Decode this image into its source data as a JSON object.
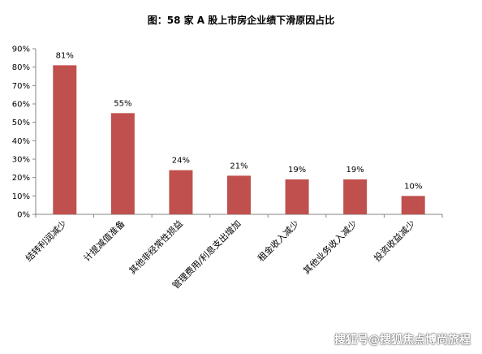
{
  "chart_data": {
    "type": "bar",
    "title": "图：58 家 A 股上市房企业绩下滑原因占比",
    "categories": [
      "结转利润减少",
      "计提减值准备",
      "其他非经常性损益",
      "管理费用/利息支出增加",
      "租金收入减少",
      "其他业务收入减少",
      "投资收益减少"
    ],
    "values": [
      81,
      55,
      24,
      21,
      19,
      19,
      10
    ],
    "data_labels": [
      "81%",
      "55%",
      "24%",
      "21%",
      "19%",
      "19%",
      "10%"
    ],
    "y_ticks": [
      "0%",
      "10%",
      "20%",
      "30%",
      "40%",
      "50%",
      "60%",
      "70%",
      "80%",
      "90%"
    ],
    "ylim": [
      0,
      90
    ],
    "y_unit": "%",
    "xlabel": "",
    "ylabel": "",
    "grid": false,
    "legend": "none",
    "bar_color": "#C0504D"
  },
  "watermark": "搜狐号@搜狐焦点博尚旅程"
}
